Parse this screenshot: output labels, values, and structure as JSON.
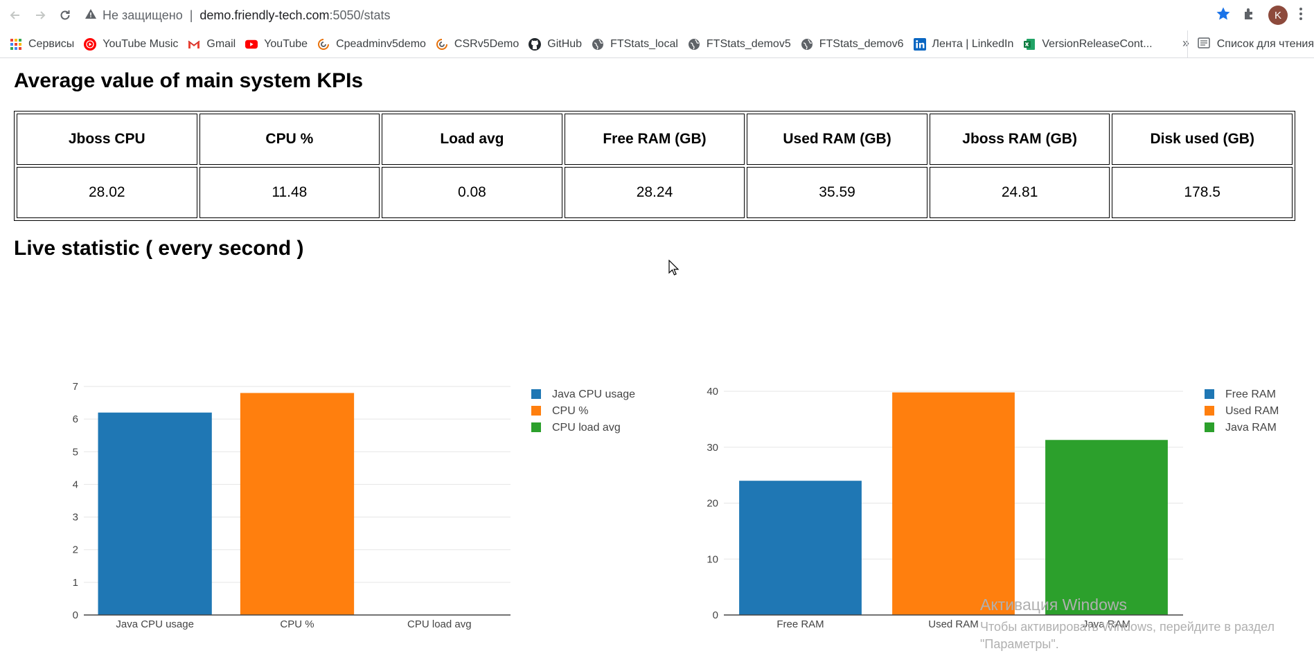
{
  "browser": {
    "security_label": "Не защищено",
    "url_host": "demo.friendly-tech.com",
    "url_path": ":5050/stats",
    "avatar_letter": "K",
    "bookmarks": [
      {
        "label": "Сервисы",
        "icon": "apps-grid-icon"
      },
      {
        "label": "YouTube Music",
        "icon": "youtube-music-icon"
      },
      {
        "label": "Gmail",
        "icon": "gmail-icon"
      },
      {
        "label": "YouTube",
        "icon": "youtube-icon"
      },
      {
        "label": "Cpeadminv5demo",
        "icon": "friendly-tech-icon"
      },
      {
        "label": "CSRv5Demo",
        "icon": "friendly-tech-icon"
      },
      {
        "label": "GitHub",
        "icon": "github-icon"
      },
      {
        "label": "FTStats_local",
        "icon": "globe-icon"
      },
      {
        "label": "FTStats_demov5",
        "icon": "globe-icon"
      },
      {
        "label": "FTStats_demov6",
        "icon": "globe-icon"
      },
      {
        "label": "Лента | LinkedIn",
        "icon": "linkedin-icon"
      },
      {
        "label": "VersionReleaseCont...",
        "icon": "excel-icon"
      }
    ],
    "more_label": "»",
    "reading_list_label": "Список для чтения"
  },
  "page": {
    "kpi_title": "Average value of main system KPIs",
    "live_title": "Live statistic ( every second )",
    "kpi_headers": [
      "Jboss CPU",
      "CPU %",
      "Load avg",
      "Free RAM (GB)",
      "Used RAM (GB)",
      "Jboss RAM (GB)",
      "Disk used (GB)"
    ],
    "kpi_values": [
      "28.02",
      "11.48",
      "0.08",
      "28.24",
      "35.59",
      "24.81",
      "178.5"
    ]
  },
  "colors": {
    "blue": "#1f77b4",
    "orange": "#ff7f0e",
    "green": "#2ca02c",
    "grid": "#e5e5e5",
    "axis": "#444444",
    "star": "#1a73e8"
  },
  "chart_data": [
    {
      "type": "bar",
      "title": "",
      "categories": [
        "Java CPU usage",
        "CPU %",
        "CPU load avg"
      ],
      "values": [
        6.2,
        6.8,
        0
      ],
      "legend": [
        "Java CPU usage",
        "CPU %",
        "CPU load avg"
      ],
      "ylim": [
        0,
        7
      ],
      "yticks": [
        0,
        1,
        2,
        3,
        4,
        5,
        6,
        7
      ],
      "grid": true,
      "legend_position": "top-right"
    },
    {
      "type": "bar",
      "title": "",
      "categories": [
        "Free RAM",
        "Used RAM",
        "Java RAM"
      ],
      "values": [
        24,
        39.8,
        31.3
      ],
      "legend": [
        "Free RAM",
        "Used RAM",
        "Java RAM"
      ],
      "ylim": [
        0,
        40
      ],
      "yticks": [
        0,
        10,
        20,
        30,
        40
      ],
      "grid": true,
      "legend_position": "top-right"
    }
  ],
  "watermark": {
    "line1": "Активация Windows",
    "line2": "Чтобы активировать Windows, перейдите в раздел",
    "line3": "\"Параметры\"."
  }
}
